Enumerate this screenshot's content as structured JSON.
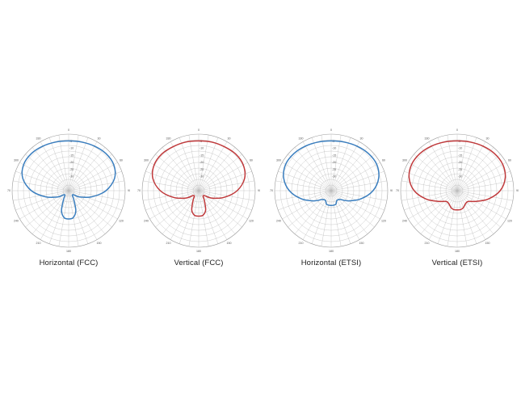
{
  "chart_data": [
    {
      "type": "polar-line",
      "title": "Horizontal (FCC)",
      "color": "#3a7ebf",
      "theta": [
        0,
        15,
        30,
        45,
        60,
        75,
        90,
        105,
        120,
        135,
        150,
        160,
        170,
        180,
        190,
        200,
        210,
        225,
        240,
        255,
        270,
        285,
        300,
        315,
        330,
        345,
        360
      ],
      "r": [
        0.88,
        0.89,
        0.91,
        0.93,
        0.92,
        0.84,
        0.66,
        0.42,
        0.22,
        0.1,
        0.18,
        0.37,
        0.48,
        0.5,
        0.48,
        0.37,
        0.18,
        0.1,
        0.22,
        0.42,
        0.66,
        0.84,
        0.92,
        0.93,
        0.91,
        0.89,
        0.88
      ],
      "rlim": [
        0,
        1
      ],
      "angle_labels": [
        "0",
        "30",
        "60",
        "90",
        "120",
        "150",
        "180",
        "210",
        "240",
        "270",
        "300",
        "330"
      ],
      "radial_labels": [
        "-30",
        "-25",
        "-20",
        "-15",
        "-10",
        "-5"
      ]
    },
    {
      "type": "polar-line",
      "title": "Vertical (FCC)",
      "color": "#c0393b",
      "theta": [
        0,
        15,
        30,
        45,
        60,
        75,
        90,
        105,
        120,
        135,
        150,
        160,
        170,
        180,
        190,
        200,
        210,
        225,
        240,
        255,
        270,
        285,
        300,
        315,
        330,
        345,
        360
      ],
      "r": [
        0.88,
        0.89,
        0.9,
        0.92,
        0.91,
        0.84,
        0.68,
        0.46,
        0.26,
        0.12,
        0.2,
        0.36,
        0.44,
        0.45,
        0.44,
        0.36,
        0.2,
        0.12,
        0.26,
        0.46,
        0.68,
        0.84,
        0.91,
        0.92,
        0.9,
        0.89,
        0.88
      ],
      "rlim": [
        0,
        1
      ],
      "angle_labels": [
        "0",
        "30",
        "60",
        "90",
        "120",
        "150",
        "180",
        "210",
        "240",
        "270",
        "300",
        "330"
      ],
      "radial_labels": [
        "-30",
        "-25",
        "-20",
        "-15",
        "-10",
        "-5"
      ]
    },
    {
      "type": "polar-line",
      "title": "Horizontal (ETSI)",
      "color": "#3a7ebf",
      "theta": [
        0,
        15,
        30,
        45,
        60,
        75,
        90,
        105,
        120,
        135,
        150,
        160,
        170,
        180,
        190,
        200,
        210,
        225,
        240,
        255,
        270,
        285,
        300,
        315,
        330,
        345,
        360
      ],
      "r": [
        0.88,
        0.89,
        0.91,
        0.93,
        0.93,
        0.87,
        0.74,
        0.55,
        0.36,
        0.22,
        0.2,
        0.25,
        0.26,
        0.26,
        0.26,
        0.25,
        0.2,
        0.22,
        0.36,
        0.55,
        0.74,
        0.87,
        0.93,
        0.93,
        0.91,
        0.89,
        0.88
      ],
      "rlim": [
        0,
        1
      ],
      "angle_labels": [
        "0",
        "30",
        "60",
        "90",
        "120",
        "150",
        "180",
        "210",
        "240",
        "270",
        "300",
        "330"
      ],
      "radial_labels": [
        "-30",
        "-25",
        "-20",
        "-15",
        "-10",
        "-5"
      ]
    },
    {
      "type": "polar-line",
      "title": "Vertical (ETSI)",
      "color": "#c0393b",
      "theta": [
        0,
        15,
        30,
        45,
        60,
        75,
        90,
        105,
        120,
        135,
        150,
        160,
        170,
        180,
        190,
        200,
        210,
        225,
        240,
        255,
        270,
        285,
        300,
        315,
        330,
        345,
        360
      ],
      "r": [
        0.88,
        0.89,
        0.91,
        0.93,
        0.93,
        0.88,
        0.76,
        0.57,
        0.38,
        0.27,
        0.28,
        0.32,
        0.34,
        0.34,
        0.34,
        0.32,
        0.28,
        0.27,
        0.38,
        0.57,
        0.76,
        0.88,
        0.93,
        0.93,
        0.91,
        0.89,
        0.88
      ],
      "rlim": [
        0,
        1
      ],
      "angle_labels": [
        "0",
        "30",
        "60",
        "90",
        "120",
        "150",
        "180",
        "210",
        "240",
        "270",
        "300",
        "330"
      ],
      "radial_labels": [
        "-30",
        "-25",
        "-20",
        "-15",
        "-10",
        "-5"
      ]
    }
  ]
}
